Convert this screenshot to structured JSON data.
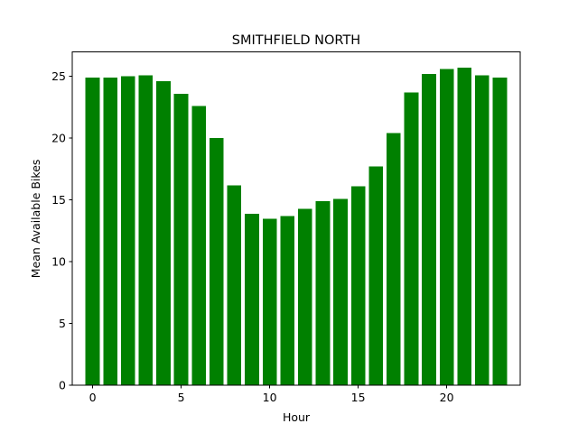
{
  "chart_data": {
    "type": "bar",
    "title": "SMITHFIELD NORTH",
    "xlabel": "Hour",
    "ylabel": "Mean Available Bikes",
    "categories": [
      0,
      1,
      2,
      3,
      4,
      5,
      6,
      7,
      8,
      9,
      10,
      11,
      12,
      13,
      14,
      15,
      16,
      17,
      18,
      19,
      20,
      21,
      22,
      23
    ],
    "values": [
      24.9,
      24.9,
      25.0,
      25.1,
      24.6,
      23.6,
      22.6,
      20.0,
      16.2,
      13.9,
      13.5,
      13.7,
      14.3,
      14.9,
      15.1,
      16.1,
      17.7,
      20.4,
      23.7,
      25.2,
      25.6,
      25.7,
      25.1,
      24.9
    ],
    "xlim": [
      -1.15,
      24.15
    ],
    "ylim": [
      0,
      26.98
    ],
    "xticks": [
      0,
      5,
      10,
      15,
      20
    ],
    "yticks": [
      0,
      5,
      10,
      15,
      20,
      25
    ],
    "bar_color": "#008000",
    "grid": false,
    "legend": "none"
  }
}
